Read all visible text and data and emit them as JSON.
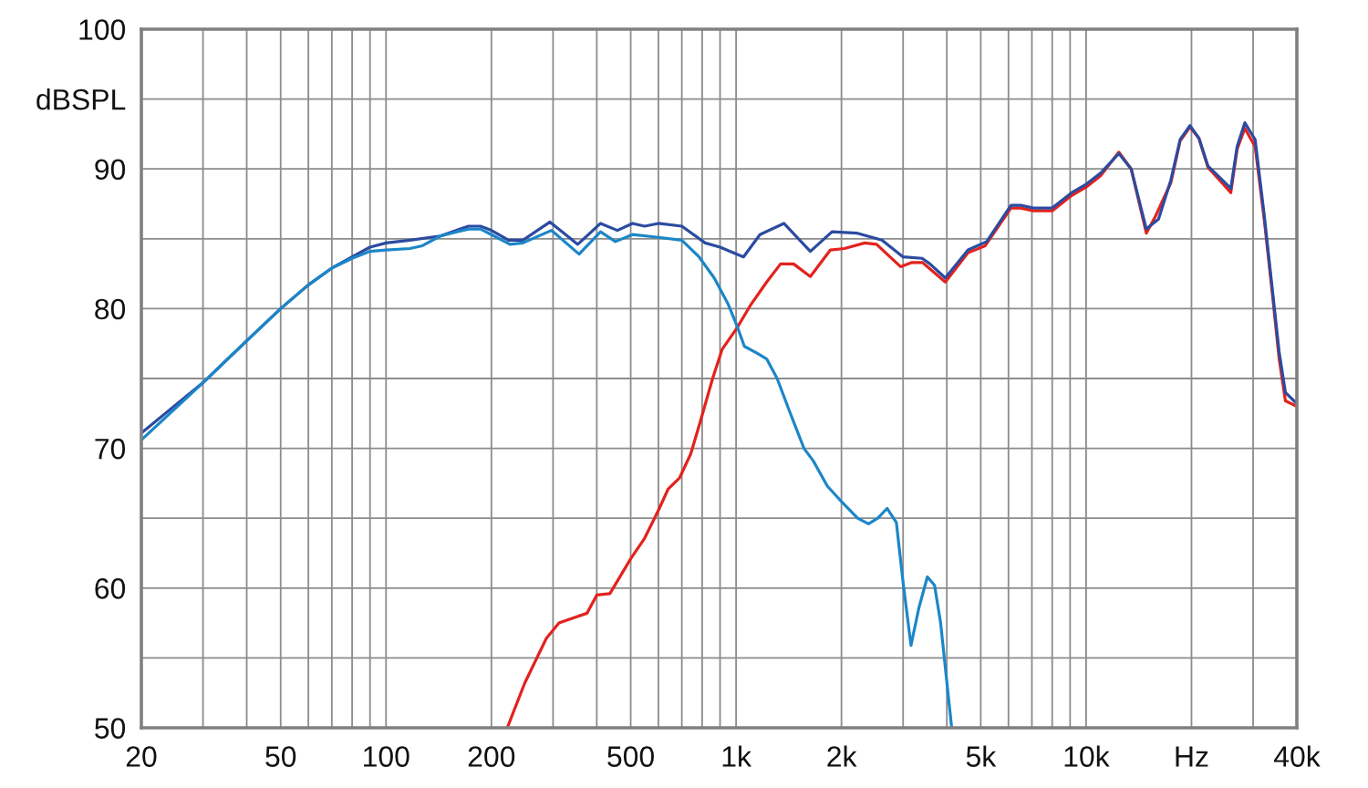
{
  "chart_data": {
    "type": "line",
    "log": "x",
    "grid": true,
    "xlim": [
      20,
      40000
    ],
    "ylim": [
      50,
      100
    ],
    "xticks": [
      20,
      {
        "value": 30,
        "label": null
      },
      {
        "value": 40,
        "label": null
      },
      50,
      {
        "value": 60,
        "label": null
      },
      {
        "value": 70,
        "label": null
      },
      {
        "value": 80,
        "label": null
      },
      {
        "value": 90,
        "label": null
      },
      100,
      200,
      {
        "value": 300,
        "label": null
      },
      {
        "value": 400,
        "label": null
      },
      500,
      {
        "value": 600,
        "label": null
      },
      {
        "value": 700,
        "label": null
      },
      {
        "value": 800,
        "label": null
      },
      {
        "value": 900,
        "label": null
      },
      {
        "value": 1000,
        "label": "1k"
      },
      {
        "value": 2000,
        "label": "2k"
      },
      {
        "value": 3000,
        "label": null
      },
      {
        "value": 4000,
        "label": null
      },
      {
        "value": 5000,
        "label": "5k"
      },
      {
        "value": 6000,
        "label": null
      },
      {
        "value": 7000,
        "label": null
      },
      {
        "value": 8000,
        "label": null
      },
      {
        "value": 9000,
        "label": null
      },
      {
        "value": 10000,
        "label": "10k"
      },
      {
        "value": 20000,
        "label": "Hz"
      },
      {
        "value": 30000,
        "label": null
      },
      {
        "value": 40000,
        "label": "40k"
      }
    ],
    "yticks": [
      50,
      {
        "value": 55,
        "label": null
      },
      60,
      {
        "value": 65,
        "label": null
      },
      70,
      {
        "value": 75,
        "label": null
      },
      80,
      {
        "value": 85,
        "label": null
      },
      90,
      {
        "value": 95,
        "label": "dBSPL"
      },
      100
    ],
    "series": [
      {
        "color": "#e3221e",
        "x": [
          222,
          249,
          287,
          312,
          346,
          375,
          400,
          436,
          500,
          546,
          601,
          640,
          690,
          742,
          790,
          857,
          913,
          1005,
          1103,
          1223,
          1340,
          1460,
          1630,
          1860,
          2040,
          2330,
          2520,
          2950,
          3180,
          3410,
          3960,
          4600,
          5150,
          6100,
          6500,
          7070,
          8000,
          9100,
          10000,
          11000,
          12400,
          13450,
          14860,
          15700,
          17460,
          18560,
          19800,
          21000,
          22300,
          24050,
          25900,
          27000,
          28400,
          30400,
          32300,
          34100,
          35600,
          37100,
          40000
        ],
        "values": [
          50.0,
          53.2,
          56.4,
          57.5,
          57.9,
          58.2,
          59.5,
          59.6,
          62.1,
          63.5,
          65.6,
          67.1,
          67.9,
          69.6,
          71.9,
          75.0,
          77.1,
          78.6,
          80.3,
          81.9,
          83.2,
          83.2,
          82.3,
          84.2,
          84.3,
          84.7,
          84.6,
          83.0,
          83.3,
          83.3,
          81.9,
          84.0,
          84.5,
          87.2,
          87.2,
          87.0,
          87.0,
          88.1,
          88.7,
          89.5,
          91.2,
          90.0,
          85.4,
          86.5,
          89.0,
          92.0,
          93.0,
          92.2,
          90.1,
          89.2,
          88.3,
          91.4,
          92.9,
          91.6,
          86.3,
          80.9,
          76.4,
          73.4,
          73.0
        ]
      },
      {
        "color": "#2b4ba0",
        "x": [
          20,
          30,
          40,
          50,
          60,
          70,
          80,
          90,
          100,
          117,
          143,
          172,
          186,
          200,
          224,
          246,
          294,
          353,
          410,
          458,
          506,
          548,
          600,
          700,
          816,
          900,
          1050,
          1170,
          1370,
          1630,
          1880,
          2220,
          2610,
          3000,
          3400,
          3580,
          3960,
          4600,
          5200,
          6100,
          6500,
          7070,
          8000,
          9100,
          10000,
          11000,
          12400,
          13450,
          14860,
          16100,
          17460,
          18560,
          19800,
          21000,
          22300,
          24050,
          25900,
          27000,
          28400,
          30400,
          32300,
          34100,
          35600,
          37100,
          40000
        ],
        "values": [
          71.1,
          74.7,
          77.7,
          80.0,
          81.7,
          82.9,
          83.7,
          84.4,
          84.7,
          84.9,
          85.2,
          85.9,
          85.9,
          85.6,
          84.9,
          84.9,
          86.2,
          84.6,
          86.1,
          85.6,
          86.1,
          85.9,
          86.1,
          85.9,
          84.7,
          84.4,
          83.7,
          85.3,
          86.1,
          84.1,
          85.5,
          85.4,
          84.9,
          83.7,
          83.6,
          83.2,
          82.2,
          84.2,
          84.8,
          87.4,
          87.4,
          87.2,
          87.2,
          88.3,
          88.9,
          89.7,
          91.1,
          90.0,
          85.7,
          86.4,
          89.2,
          92.1,
          93.1,
          92.2,
          90.2,
          89.4,
          88.6,
          91.6,
          93.3,
          92.1,
          86.6,
          81.2,
          76.9,
          74.0,
          73.2
        ]
      },
      {
        "color": "#1c86c8",
        "x": [
          20,
          30,
          40,
          50,
          60,
          70,
          80,
          90,
          100,
          117,
          127,
          143,
          172,
          186,
          200,
          226,
          246,
          297,
          356,
          410,
          452,
          506,
          600,
          700,
          784,
          866,
          950,
          1005,
          1056,
          1150,
          1223,
          1310,
          1424,
          1563,
          1662,
          1823,
          1982,
          2224,
          2390,
          2540,
          2700,
          2870,
          3000,
          3160,
          3330,
          3520,
          3690,
          3840,
          4130
        ],
        "values": [
          70.6,
          74.7,
          77.7,
          80.0,
          81.7,
          82.9,
          83.6,
          84.1,
          84.2,
          84.3,
          84.5,
          85.2,
          85.7,
          85.7,
          85.3,
          84.6,
          84.7,
          85.6,
          83.9,
          85.5,
          84.8,
          85.3,
          85.1,
          84.9,
          83.7,
          82.2,
          80.3,
          78.8,
          77.3,
          76.8,
          76.4,
          75.0,
          72.6,
          70.0,
          69.1,
          67.3,
          66.3,
          65.0,
          64.6,
          65.0,
          65.7,
          64.7,
          60.4,
          55.9,
          58.6,
          60.8,
          60.2,
          57.5,
          50.0
        ]
      }
    ]
  }
}
